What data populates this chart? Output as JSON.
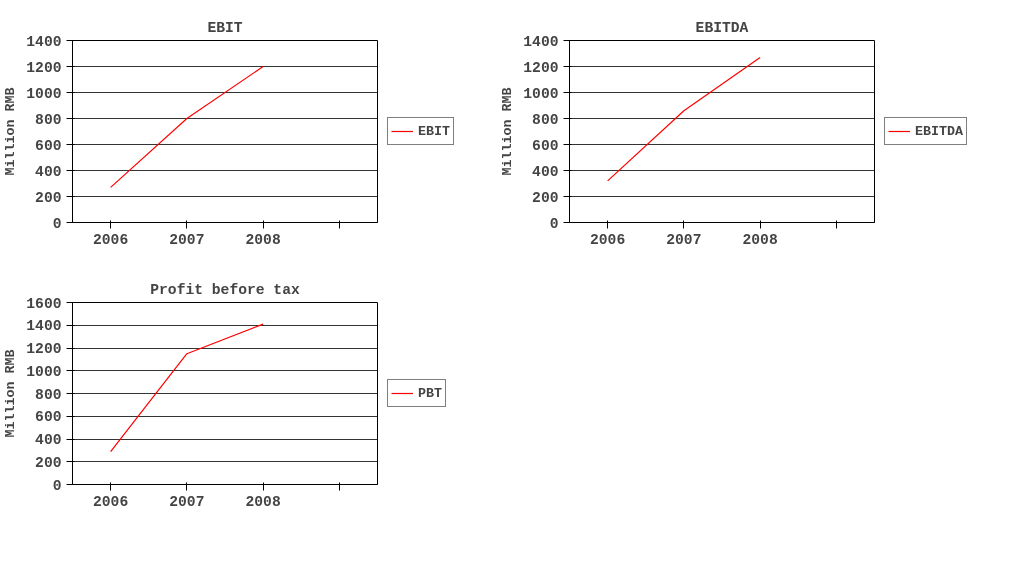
{
  "chart_data": [
    {
      "type": "line",
      "title": "EBIT",
      "ylabel": "Million RMB",
      "categories": [
        "2006",
        "2007",
        "2008",
        null
      ],
      "series": [
        {
          "name": "EBIT",
          "color": "#ff0000",
          "values": [
            270,
            800,
            1200,
            null
          ]
        }
      ],
      "ylim": [
        0,
        1400
      ],
      "yticks": [
        0,
        200,
        400,
        600,
        800,
        1000,
        1200,
        1400
      ],
      "grid": "y",
      "legend": "right"
    },
    {
      "type": "line",
      "title": "EBITDA",
      "ylabel": "Million RMB",
      "categories": [
        "2006",
        "2007",
        "2008",
        null
      ],
      "series": [
        {
          "name": "EBITDA",
          "color": "#ff0000",
          "values": [
            320,
            860,
            1270,
            null
          ]
        }
      ],
      "ylim": [
        0,
        1400
      ],
      "yticks": [
        0,
        200,
        400,
        600,
        800,
        1000,
        1200,
        1400
      ],
      "grid": "y",
      "legend": "right"
    },
    {
      "type": "line",
      "title": "Profit before tax",
      "ylabel": "Million RMB",
      "categories": [
        "2006",
        "2007",
        "2008",
        null
      ],
      "series": [
        {
          "name": "PBT",
          "color": "#ff0000",
          "values": [
            290,
            1150,
            1410,
            null
          ]
        }
      ],
      "ylim": [
        0,
        1600
      ],
      "yticks": [
        0,
        200,
        400,
        600,
        800,
        1000,
        1200,
        1400,
        1600
      ],
      "grid": "y",
      "legend": "right"
    }
  ]
}
